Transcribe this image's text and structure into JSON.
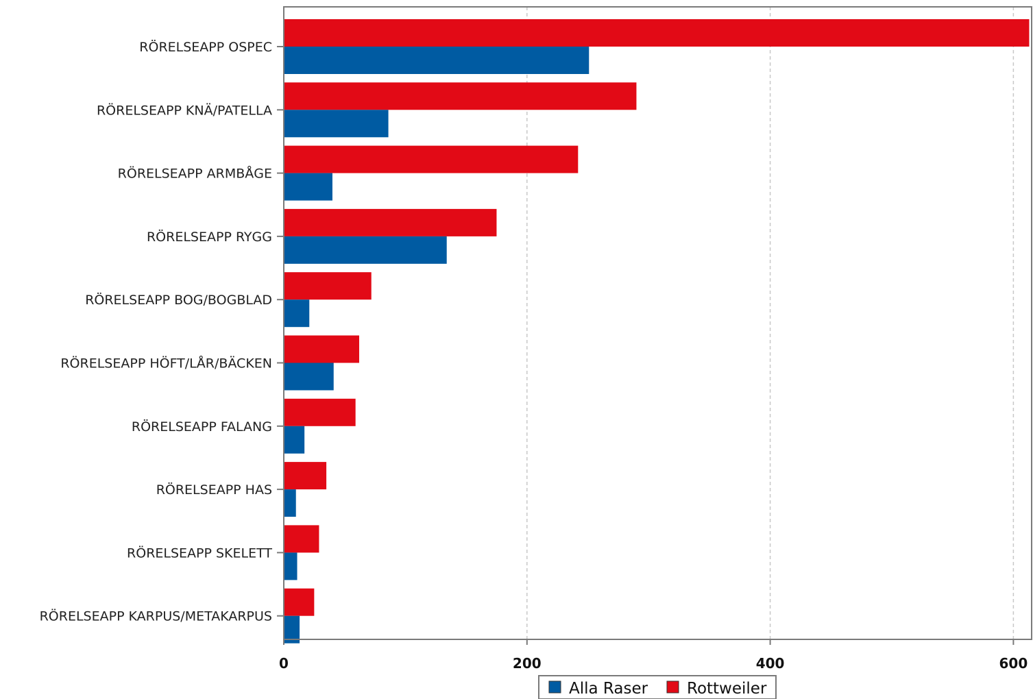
{
  "chart_data": {
    "type": "bar",
    "orientation": "horizontal",
    "categories": [
      "RÖRELSEAPP OSPEC",
      "RÖRELSEAPP KNÄ/PATELLA",
      "RÖRELSEAPP ARMBÅGE",
      "RÖRELSEAPP RYGG",
      "RÖRELSEAPP BOG/BOGBLAD",
      "RÖRELSEAPP HÖFT/LÅR/BÄCKEN",
      "RÖRELSEAPP FALANG",
      "RÖRELSEAPP HAS",
      "RÖRELSEAPP SKELETT",
      "RÖRELSEAPP KARPUS/METAKARPUS"
    ],
    "series": [
      {
        "name": "Rottweiler",
        "color": "#e20a16",
        "values": [
          613,
          290,
          242,
          175,
          72,
          62,
          59,
          35,
          29,
          25
        ]
      },
      {
        "name": "Alla Raser",
        "color": "#005ba2",
        "values": [
          251,
          86,
          40,
          134,
          21,
          41,
          17,
          10,
          11,
          13
        ]
      }
    ],
    "xlim": [
      0,
      615
    ],
    "xticks": [
      0,
      200,
      400,
      600
    ],
    "grid": "vertical dashed",
    "legend": {
      "placement": "bottom-center",
      "items": [
        "Alla Raser",
        "Rottweiler"
      ]
    },
    "title": "",
    "xlabel": "",
    "ylabel": ""
  }
}
